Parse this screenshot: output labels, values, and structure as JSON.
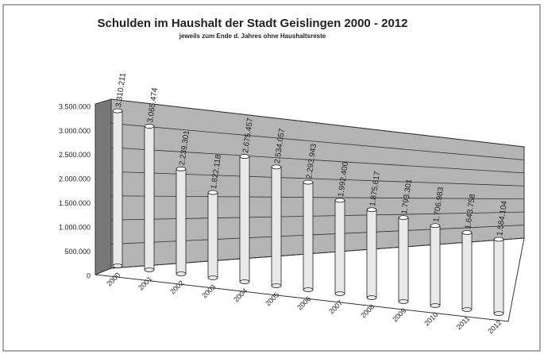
{
  "chart_data": {
    "type": "bar3d",
    "title": "Schulden im Haushalt der Stadt Geislingen 2000 - 2012",
    "subtitle": "jeweils zum Ende d. Jahres ohne Haushaltsreste",
    "categories": [
      "2000",
      "2001",
      "2002",
      "2003",
      "2004",
      "2005",
      "2006",
      "2007",
      "2008",
      "2009",
      "2010",
      "2011",
      "2012"
    ],
    "values": [
      3310211,
      3065474,
      2239301,
      1822118,
      2675457,
      2534057,
      2293943,
      1992400,
      1875617,
      1793301,
      1706983,
      1643758,
      1584104
    ],
    "value_labels": [
      "3.310.211",
      "3.065.474",
      "2.239.301",
      "1.822.118",
      "2.675.457",
      "2.534.057",
      "2.293.943",
      "1.992.400",
      "1.875.617",
      "1.793.301",
      "1.706.983",
      "1.643.758",
      "1.584.104"
    ],
    "color": "#e8e8e8",
    "ylim": [
      0,
      3500000
    ],
    "yticks": [
      0,
      {
        "value": 500000,
        "label": "500.000"
      },
      {
        "value": 1000000,
        "label": "1.000.000"
      },
      {
        "value": 1500000,
        "label": "1.500.000"
      },
      {
        "value": 2000000,
        "label": "2.000.000"
      },
      {
        "value": 2500000,
        "label": "2.500.000"
      },
      {
        "value": 3000000,
        "label": "3.000.000"
      },
      {
        "value": 3500000,
        "label": "3.500.000"
      }
    ],
    "grid": true
  }
}
